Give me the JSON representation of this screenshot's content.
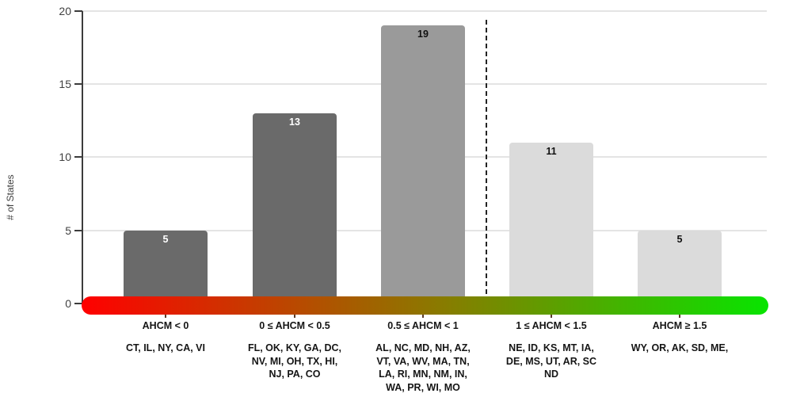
{
  "chart_data": {
    "type": "bar",
    "title": "",
    "xlabel": "",
    "ylabel": "# of States",
    "ylim": [
      0,
      20
    ],
    "yticks": [
      "20",
      "15",
      "10",
      "5",
      "0"
    ],
    "grid": true,
    "legend": false,
    "categories": [
      "AHCM < 0",
      "0 ≤ AHCM < 0.5",
      "0.5 ≤ AHCM < 1",
      "1 ≤ AHCM < 1.5",
      "AHCM ≥ 1.5"
    ],
    "values": [
      5,
      13,
      19,
      11,
      5
    ],
    "bar_colors": [
      "#6a6a6a",
      "#6a6a6a",
      "#9a9a9a",
      "#dbdbdb",
      "#dbdbdb"
    ],
    "value_label_colors": [
      "#ffffff",
      "#ffffff",
      "#111111",
      "#111111",
      "#111111"
    ],
    "state_lists": [
      [
        "CT, IL, NY, CA, VI"
      ],
      [
        "FL, OK, KY, GA, DC,",
        "NV, MI, OH, TX, HI,",
        "NJ, PA, CO"
      ],
      [
        "AL, NC, MD, NH, AZ,",
        "VT, VA, WV, MA, TN,",
        "LA, RI, MN, NM, IN,",
        "WA, PR, WI, MO"
      ],
      [
        "NE, ID, KS, MT, IA,",
        "DE, MS, UT, AR, SC",
        "ND"
      ],
      [
        "WY, OR, AK, SD, ME,"
      ]
    ],
    "annotations": {
      "dashed_divider_position": "between 0.5 ≤ AHCM < 1 and 1 ≤ AHCM < 1.5"
    },
    "x_axis_gradient": {
      "from": "#ff0000",
      "mid": "#8a7a00",
      "to": "#08e400"
    }
  }
}
